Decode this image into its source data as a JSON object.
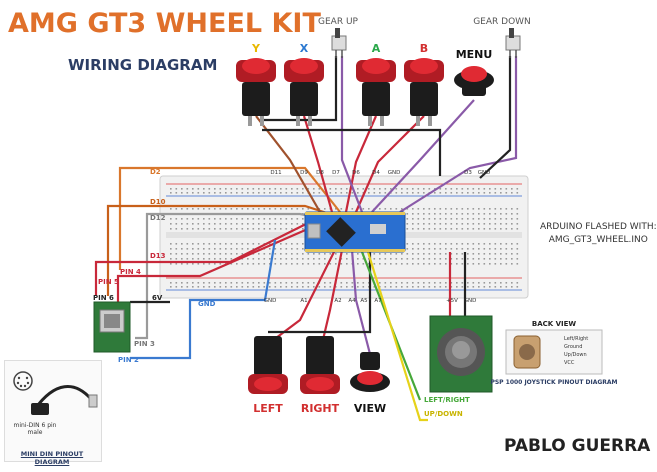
{
  "title": "AMG GT3 WHEEL KIT",
  "subtitle": "WIRING DIAGRAM",
  "author": "PABLO GUERRA",
  "arduino_note": {
    "line1": "ARDUINO FLASHED WITH:",
    "line2": "AMG_GT3_WHEEL.INO"
  },
  "buttons_top": [
    {
      "label": "Y",
      "color": "#e8b800"
    },
    {
      "label": "X",
      "color": "#2a78d0"
    },
    {
      "label": "A",
      "color": "#2aa84a"
    },
    {
      "label": "B",
      "color": "#d23030"
    }
  ],
  "menu_label": "MENU",
  "gear_up_label": "GEAR UP",
  "gear_down_label": "GEAR DOWN",
  "buttons_bottom": [
    {
      "label": "LEFT",
      "color": "#d23030"
    },
    {
      "label": "RIGHT",
      "color": "#d23030"
    },
    {
      "label": "VIEW",
      "color": "#111111"
    }
  ],
  "wire_labels": {
    "d2": "D2",
    "d10": "D10",
    "d12": "D12",
    "d13": "D13",
    "pin4": "PIN 4",
    "pin5": "PIN 5",
    "pin6": "PIN 6",
    "pin3": "PIN 3",
    "pin2": "PIN 2",
    "v6": "6V",
    "gnd": "GND",
    "left_right": "LEFT/RIGHT",
    "up_down": "UP/DOWN"
  },
  "board_pin_labels_top": [
    "D11",
    "D9",
    "D8",
    "D7",
    "D6",
    "D4",
    "GND",
    "D3",
    "GND"
  ],
  "board_pin_labels_bottom": [
    "GND",
    "A1",
    "A2",
    "A4",
    "A5",
    "A7",
    "+5V",
    "GND"
  ],
  "back_view": {
    "title": "BACK VIEW",
    "pins": [
      "Left/Right",
      "Ground",
      "Up/Down",
      "VCC"
    ],
    "caption": "PSP 1000 JOYSTICK PINOUT DIAGRAM"
  },
  "mini_din": {
    "caption": "MINI DIN PINOUT DIAGRAM",
    "inner_label_line1": "mini-DIN 6 pin",
    "inner_label_line2": "male"
  },
  "colors": {
    "title": "#e0702a",
    "subtitle": "#2b3d64",
    "wire_orange": "#d9772c",
    "wire_brown": "#a0522d",
    "wire_red": "#c8283a",
    "wire_purple": "#8a5aa8",
    "wire_gray": "#9a9a9a",
    "wire_blue": "#3a7ad0",
    "wire_yellow": "#e6d21a",
    "wire_green": "#46a83a",
    "wire_black": "#222222",
    "board": "#2a6fd0",
    "pcb_green": "#2f7a3a"
  }
}
